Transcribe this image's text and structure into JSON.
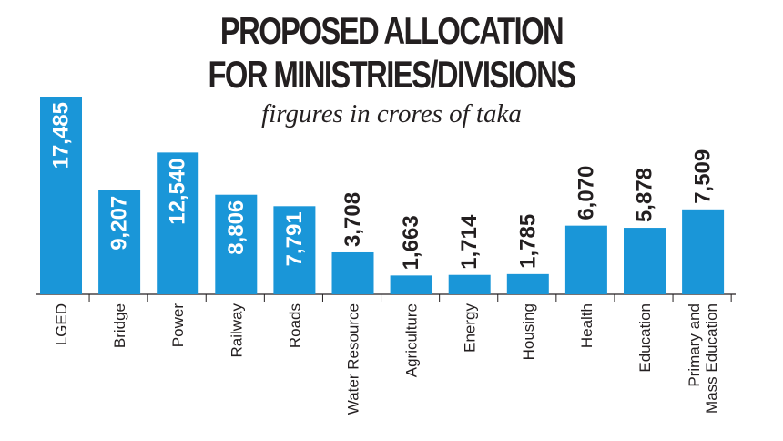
{
  "colors": {
    "bar": "#1a96d8",
    "text": "#231f20",
    "axis": "#231f20",
    "value_on_bar": "#ffffff"
  },
  "chart_data": {
    "type": "bar",
    "title_line1": "PROPOSED ALLOCATION",
    "title_line2": "FOR MINISTRIES/DIVISIONS",
    "subtitle": "firgures in crores of taka",
    "xlabel": "",
    "ylabel": "",
    "grid": false,
    "legend": "none",
    "ylim": [
      0,
      17485
    ],
    "categories": [
      "LGED",
      "Bridge",
      "Power",
      "Railway",
      "Roads",
      "Water Resource",
      "Agriculture",
      "Energy",
      "Housing",
      "Health",
      "Education",
      "Primary and Mass Education"
    ],
    "category_lines": [
      [
        "LGED"
      ],
      [
        "Bridge"
      ],
      [
        "Power"
      ],
      [
        "Railway"
      ],
      [
        "Roads"
      ],
      [
        "Water Resource"
      ],
      [
        "Agriculture"
      ],
      [
        "Energy"
      ],
      [
        "Housing"
      ],
      [
        "Health"
      ],
      [
        "Education"
      ],
      [
        "Primary and",
        "Mass Education"
      ]
    ],
    "values": [
      17485,
      9207,
      12540,
      8806,
      7791,
      3708,
      1663,
      1714,
      1785,
      6070,
      5878,
      7509
    ],
    "value_labels": [
      "17,485",
      "9,207",
      "12,540",
      "8,806",
      "7,791",
      "3,708",
      "1,663",
      "1,714",
      "1,785",
      "6,070",
      "5,878",
      "7,509"
    ],
    "label_inside": [
      true,
      true,
      true,
      true,
      true,
      false,
      false,
      false,
      false,
      false,
      false,
      false
    ]
  }
}
